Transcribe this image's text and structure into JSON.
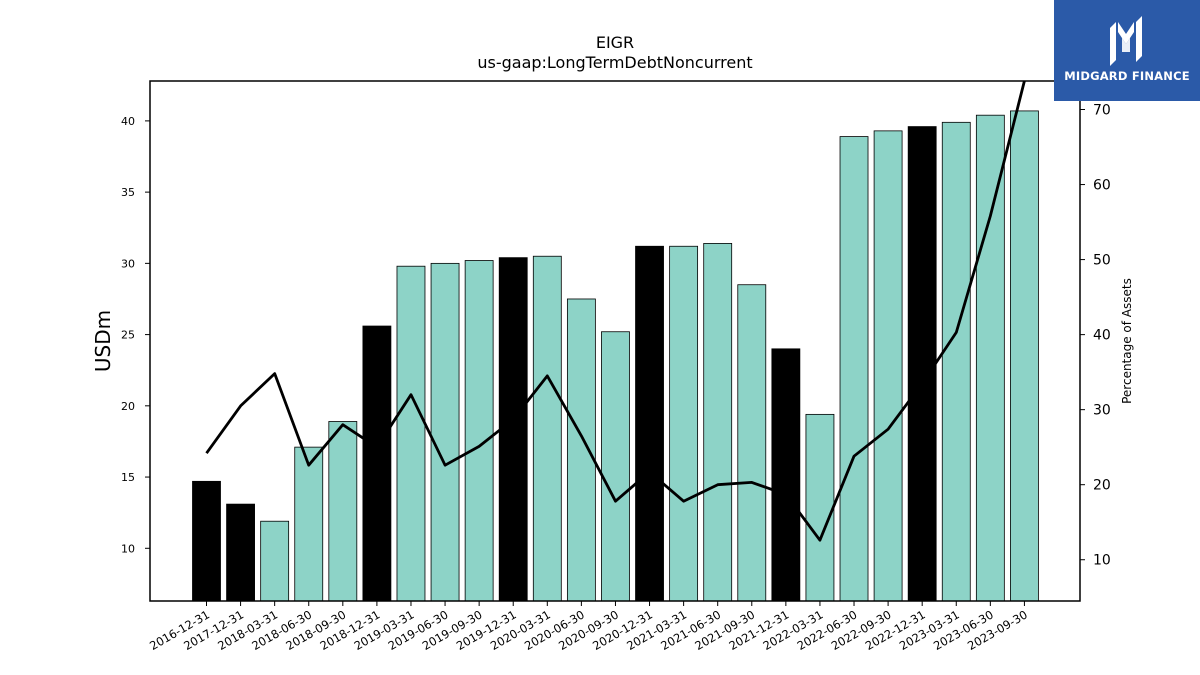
{
  "chart_data": {
    "type": "bar",
    "title": "EIGR",
    "subtitle": "us-gaap:LongTermDebtNoncurrent",
    "ylabel": "USDm",
    "y2label": "Percentage of Assets",
    "ylim": [
      6.3,
      42.8
    ],
    "y2lim": [
      4.5,
      73.8
    ],
    "yticks": [
      10,
      15,
      20,
      25,
      30,
      35,
      40
    ],
    "y2ticks": [
      10,
      20,
      30,
      40,
      50,
      60,
      70
    ],
    "categories": [
      "2016-12-31",
      "2017-12-31",
      "2018-03-31",
      "2018-06-30",
      "2018-09-30",
      "2018-12-31",
      "2019-03-31",
      "2019-06-30",
      "2019-09-30",
      "2019-12-31",
      "2020-03-31",
      "2020-06-30",
      "2020-09-30",
      "2020-12-31",
      "2021-03-31",
      "2021-06-30",
      "2021-09-30",
      "2021-12-31",
      "2022-03-31",
      "2022-06-30",
      "2022-09-30",
      "2022-12-31",
      "2023-03-31",
      "2023-06-30",
      "2023-09-30"
    ],
    "values": [
      14.7,
      13.1,
      11.9,
      17.1,
      18.9,
      25.6,
      29.8,
      30.0,
      30.2,
      30.4,
      30.5,
      27.5,
      25.2,
      31.2,
      31.2,
      31.4,
      28.5,
      24.0,
      19.4,
      38.9,
      39.3,
      39.6,
      39.9,
      40.4,
      40.7
    ],
    "annual": [
      true,
      true,
      false,
      false,
      false,
      true,
      false,
      false,
      false,
      true,
      false,
      false,
      false,
      true,
      false,
      false,
      false,
      true,
      false,
      false,
      false,
      true,
      false,
      false,
      false
    ],
    "line_values": [
      24.2,
      30.5,
      34.8,
      22.6,
      28.0,
      25.0,
      32.0,
      22.6,
      25.1,
      28.7,
      34.5,
      26.5,
      17.8,
      21.7,
      17.8,
      20.0,
      20.3,
      18.7,
      12.6,
      23.8,
      27.4,
      33.5,
      40.3,
      55.8,
      73.8
    ],
    "colors": {
      "annual": "#000000",
      "quarterly": "#8dd3c7",
      "line": "#000000"
    }
  },
  "logo": {
    "text": "MIDGARD FINANCE",
    "bg": "#2b5aa8"
  }
}
